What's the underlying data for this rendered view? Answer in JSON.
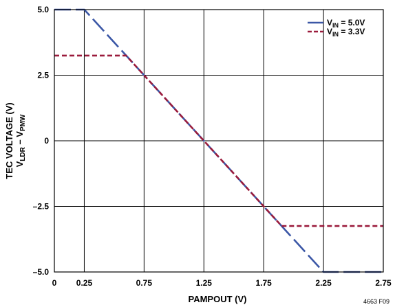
{
  "chart_data": {
    "type": "line",
    "xlabel": "PAMPOUT (V)",
    "ylabel": {
      "line1": "TEC VOLTAGE (V)",
      "line2_main": "V",
      "line2_sub1": "LDR",
      "line2_mid": " – V",
      "line2_sub2": "PMW"
    },
    "figure_id": "4663 F09",
    "xlim": [
      0,
      2.75
    ],
    "ylim": [
      -5.0,
      5.0
    ],
    "x_ticks": [
      0,
      0.25,
      0.75,
      1.25,
      1.75,
      2.25,
      2.75
    ],
    "x_tick_labels": [
      "0",
      "0.25",
      "0.75",
      "1.25",
      "1.75",
      "2.25",
      "2.75"
    ],
    "y_ticks": [
      -5.0,
      -2.5,
      0,
      2.5,
      5.0
    ],
    "y_tick_labels": [
      "–5.0",
      "–2.5",
      "0",
      "2.5",
      "5.0"
    ],
    "grid": true,
    "legend_position": "top-right",
    "series": [
      {
        "name_main": "V",
        "name_sub": "IN",
        "name_rest": " = 5.0V",
        "color": "#3b57a6",
        "dash": "long-dash",
        "points": [
          [
            0,
            5.0
          ],
          [
            0.25,
            5.0
          ],
          [
            2.25,
            -5.0
          ],
          [
            2.75,
            -5.0
          ]
        ]
      },
      {
        "name_main": "V",
        "name_sub": "IN",
        "name_rest": " = 3.3V",
        "color": "#9b1b3c",
        "dash": "short-dash",
        "points": [
          [
            0,
            3.25
          ],
          [
            0.6,
            3.25
          ],
          [
            1.9,
            -3.25
          ],
          [
            2.75,
            -3.25
          ]
        ]
      }
    ]
  }
}
